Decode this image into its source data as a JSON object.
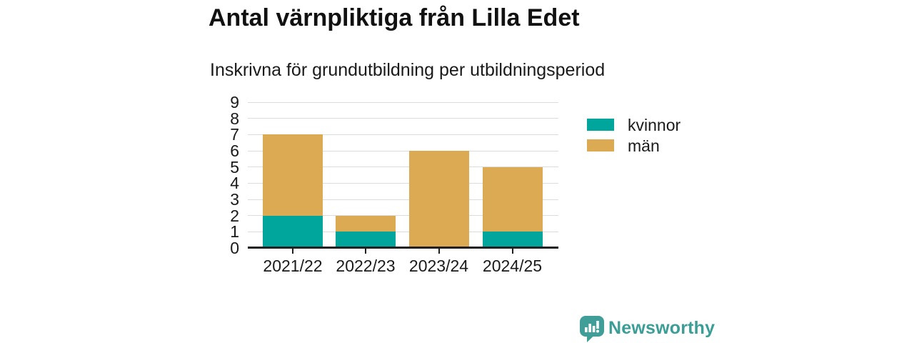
{
  "title": "Antal värnpliktiga från Lilla Edet",
  "subtitle": "Inskrivna för grundutbildning per utbildningsperiod",
  "chart_data": {
    "type": "bar",
    "stacked": true,
    "title": "Antal värnpliktiga från Lilla Edet",
    "subtitle": "Inskrivna för grundutbildning per utbildningsperiod",
    "categories": [
      "2021/22",
      "2022/23",
      "2023/24",
      "2024/25"
    ],
    "series": [
      {
        "name": "kvinnor",
        "color": "#00a69c",
        "values": [
          2,
          1,
          0,
          1
        ]
      },
      {
        "name": "män",
        "color": "#dcaa52",
        "values": [
          5,
          1,
          6,
          4
        ]
      }
    ],
    "totals": [
      7,
      2,
      6,
      5
    ],
    "xlabel": "",
    "ylabel": "",
    "ylim": [
      0,
      9
    ],
    "yticks": [
      0,
      1,
      2,
      3,
      4,
      5,
      6,
      7,
      8,
      9
    ],
    "grid": true,
    "gridline_color": "#dcdcdc",
    "axis_color": "#1f1f1f",
    "legend_position": "right"
  },
  "branding": {
    "logo_text": "Newsworthy",
    "logo_icon": "bar-chart-speech-bubble-icon",
    "brand_color": "#3a9e97"
  }
}
